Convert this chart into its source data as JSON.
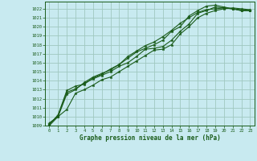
{
  "title": "Graphe pression niveau de la mer (hPa)",
  "background_color": "#c8eaf0",
  "grid_color": "#a0c8c0",
  "line_color": "#1a5c1a",
  "marker_color": "#1a5c1a",
  "xlim": [
    -0.5,
    23.5
  ],
  "ylim": [
    1009,
    1022.8
  ],
  "yticks": [
    1009,
    1010,
    1011,
    1012,
    1013,
    1014,
    1015,
    1016,
    1017,
    1018,
    1019,
    1020,
    1021,
    1022
  ],
  "xticks": [
    0,
    1,
    2,
    3,
    4,
    5,
    6,
    7,
    8,
    9,
    10,
    11,
    12,
    13,
    14,
    15,
    16,
    17,
    18,
    19,
    20,
    21,
    22,
    23
  ],
  "series": [
    [
      1009.0,
      1010.0,
      1010.8,
      1012.6,
      1013.0,
      1013.5,
      1014.1,
      1014.4,
      1015.0,
      1015.6,
      1016.2,
      1016.8,
      1017.4,
      1017.5,
      1018.0,
      1019.2,
      1020.0,
      1021.0,
      1021.5,
      1021.8,
      1022.0,
      1022.1,
      1022.0,
      1021.9
    ],
    [
      1009.2,
      1010.1,
      1012.7,
      1013.1,
      1013.7,
      1014.2,
      1014.6,
      1015.0,
      1015.6,
      1016.0,
      1016.7,
      1017.5,
      1017.6,
      1017.8,
      1018.5,
      1019.5,
      1020.3,
      1021.5,
      1021.8,
      1022.2,
      1022.1,
      1022.0,
      1021.8,
      1021.8
    ],
    [
      1009.3,
      1010.0,
      1012.5,
      1013.0,
      1013.8,
      1014.4,
      1014.8,
      1015.2,
      1015.8,
      1016.5,
      1017.2,
      1017.6,
      1018.0,
      1018.5,
      1019.5,
      1020.0,
      1021.2,
      1021.8,
      1022.3,
      1022.4,
      1022.2,
      1022.0,
      1021.8,
      1021.8
    ],
    [
      1009.1,
      1010.2,
      1012.9,
      1013.4,
      1013.6,
      1014.3,
      1014.7,
      1015.3,
      1015.8,
      1016.7,
      1017.3,
      1017.9,
      1018.3,
      1018.9,
      1019.6,
      1020.4,
      1021.0,
      1021.6,
      1021.9,
      1022.0,
      1022.1,
      1022.0,
      1021.9,
      1021.8
    ]
  ]
}
